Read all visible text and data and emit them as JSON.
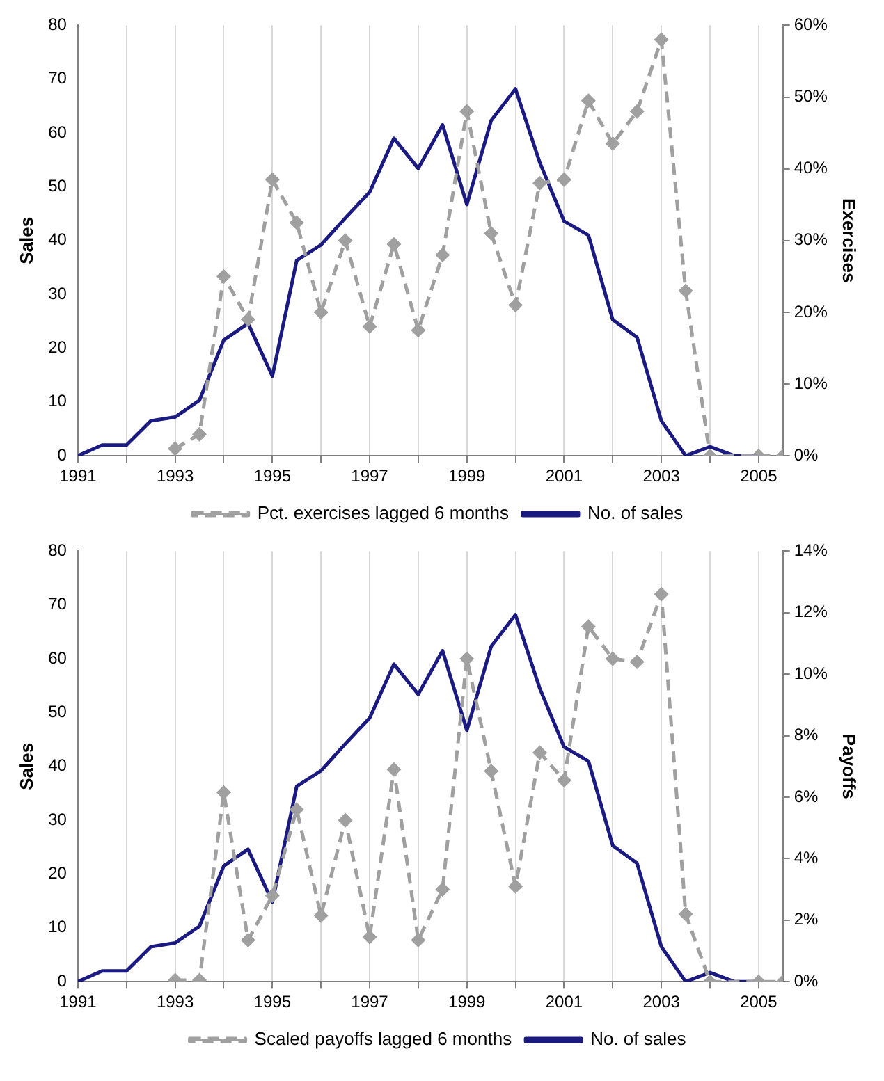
{
  "chart_data": [
    {
      "type": "line",
      "xlabel": null,
      "ylabel": "Sales",
      "y2label": "Exercises",
      "x": [
        1991,
        1991.5,
        1992,
        1992.5,
        1993,
        1993.5,
        1994,
        1994.5,
        1995,
        1995.5,
        1996,
        1996.5,
        1997,
        1997.5,
        1998,
        1998.5,
        1999,
        1999.5,
        2000,
        2000.5,
        2001,
        2001.5,
        2002,
        2002.5,
        2003,
        2003.5,
        2004,
        2004.5,
        2005,
        2005.5
      ],
      "series": [
        {
          "name": "No. of sales",
          "color": "#1a1a80",
          "marker": "none",
          "line_style": "solid",
          "values": [
            0,
            2,
            2,
            6.5,
            7.2,
            10.3,
            21.5,
            24.6,
            14.8,
            36.3,
            39.2,
            44.2,
            49,
            59,
            53.4,
            61.5,
            46.7,
            62.3,
            68.2,
            54.5,
            43.6,
            41,
            25.3,
            22,
            6.5,
            0,
            1.7,
            0,
            0,
            null
          ]
        },
        {
          "name": "Pct. exercises lagged 6 months",
          "color": "#a0a0a0",
          "marker": "diamond",
          "line_style": "dashed",
          "axis": "y2",
          "values": [
            null,
            null,
            null,
            null,
            1,
            3,
            25,
            19,
            38.5,
            32.5,
            20,
            30,
            18,
            29.5,
            17.5,
            28,
            48,
            31,
            21,
            38,
            38.5,
            49.5,
            43.5,
            48,
            58,
            23,
            0,
            null,
            0,
            0
          ]
        }
      ],
      "xlim": [
        1991,
        2005.5
      ],
      "xticks": [
        1991,
        {
          "value": 1992,
          "label": null
        },
        1993,
        {
          "value": 1994,
          "label": null
        },
        1995,
        {
          "value": 1996,
          "label": null
        },
        1997,
        {
          "value": 1998,
          "label": null
        },
        1999,
        {
          "value": 2000,
          "label": null
        },
        2001,
        {
          "value": 2002,
          "label": null
        },
        2003,
        {
          "value": 2004,
          "label": null
        },
        2005
      ],
      "ylim": [
        0,
        80
      ],
      "yticks": [
        0,
        10,
        20,
        30,
        40,
        50,
        60,
        70,
        80
      ],
      "y2lim": [
        0,
        60
      ],
      "y2ticks": [
        {
          "value": 0,
          "label": "0%"
        },
        {
          "value": 10,
          "label": "10%"
        },
        {
          "value": 20,
          "label": "20%"
        },
        {
          "value": 30,
          "label": "30%"
        },
        {
          "value": 40,
          "label": "40%"
        },
        {
          "value": 50,
          "label": "50%"
        },
        {
          "value": 60,
          "label": "60%"
        }
      ],
      "grid": "x",
      "legend": "bottom"
    },
    {
      "type": "line",
      "ylabel": "Sales",
      "y2label": "Payoffs",
      "x": [
        1991,
        1991.5,
        1992,
        1992.5,
        1993,
        1993.5,
        1994,
        1994.5,
        1995,
        1995.5,
        1996,
        1996.5,
        1997,
        1997.5,
        1998,
        1998.5,
        1999,
        1999.5,
        2000,
        2000.5,
        2001,
        2001.5,
        2002,
        2002.5,
        2003,
        2003.5,
        2004,
        2004.5,
        2005,
        2005.5
      ],
      "series": [
        {
          "name": "No. of sales",
          "color": "#1a1a80",
          "marker": "none",
          "line_style": "solid",
          "values": [
            0,
            2,
            2,
            6.5,
            7.2,
            10.3,
            21.5,
            24.6,
            14.8,
            36.3,
            39.2,
            44.2,
            49,
            59,
            53.4,
            61.5,
            46.7,
            62.3,
            68.2,
            54.5,
            43.6,
            41,
            25.3,
            22,
            6.5,
            0,
            1.7,
            0,
            0,
            null
          ]
        },
        {
          "name": "Scaled payoffs lagged 6 months",
          "color": "#a0a0a0",
          "marker": "diamond",
          "line_style": "dashed",
          "axis": "y2",
          "values": [
            null,
            null,
            null,
            null,
            0.05,
            0.05,
            6.15,
            1.35,
            2.8,
            5.6,
            2.15,
            5.25,
            1.45,
            6.9,
            1.35,
            3,
            10.5,
            6.85,
            3.1,
            7.45,
            6.55,
            11.55,
            10.5,
            10.4,
            12.6,
            2.2,
            0,
            null,
            0,
            0
          ]
        }
      ],
      "xlim": [
        1991,
        2005.5
      ],
      "xticks": [
        1991,
        {
          "value": 1992,
          "label": null
        },
        1993,
        {
          "value": 1994,
          "label": null
        },
        1995,
        {
          "value": 1996,
          "label": null
        },
        1997,
        {
          "value": 1998,
          "label": null
        },
        1999,
        {
          "value": 2000,
          "label": null
        },
        2001,
        {
          "value": 2002,
          "label": null
        },
        2003,
        {
          "value": 2004,
          "label": null
        },
        2005
      ],
      "ylim": [
        0,
        80
      ],
      "yticks": [
        0,
        10,
        20,
        30,
        40,
        50,
        60,
        70,
        80
      ],
      "y2lim": [
        0,
        14
      ],
      "y2ticks": [
        {
          "value": 0,
          "label": "0%"
        },
        {
          "value": 2,
          "label": "2%"
        },
        {
          "value": 4,
          "label": "4%"
        },
        {
          "value": 6,
          "label": "6%"
        },
        {
          "value": 8,
          "label": "8%"
        },
        {
          "value": 10,
          "label": "10%"
        },
        {
          "value": 12,
          "label": "12%"
        },
        {
          "value": 14,
          "label": "14%"
        }
      ],
      "grid": "x",
      "legend": "bottom"
    }
  ]
}
